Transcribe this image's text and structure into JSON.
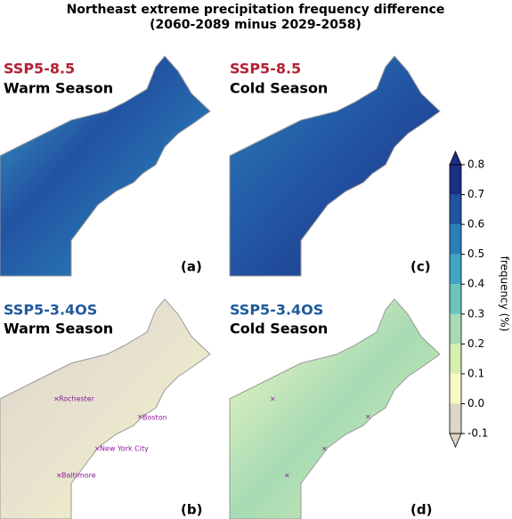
{
  "title": "Northeast extreme precipitation frequency difference",
  "subtitle": "(2060-2089 minus 2029-2058)",
  "panels": [
    {
      "scenario": "SSP5-8.5",
      "season": "Warm Season",
      "label": "(a)"
    },
    {
      "scenario": "SSP5-8.5",
      "season": "Cold Season",
      "label": "(c)"
    },
    {
      "scenario": "SSP5-3.4OS",
      "season": "Warm Season",
      "label": "(b)"
    },
    {
      "scenario": "SSP5-3.4OS",
      "season": "Cold Season",
      "label": "(d)"
    }
  ],
  "cities": [
    "Rochester",
    "Boston",
    "New York City",
    "Baltimore"
  ],
  "colorbar": {
    "label": "frequency (%)",
    "lim": [
      -0.1,
      0.8
    ],
    "ticks": [
      -0.1,
      {
        "value": 0,
        "label": "0.0"
      },
      0.1,
      0.2,
      0.3,
      0.4,
      0.5,
      0.6,
      0.7,
      0.8
    ],
    "colors": [
      "#ddd5c8",
      "#f6fac4",
      "#d9efb2",
      "#a7dbb4",
      "#6bc3bd",
      "#3ea4c6",
      "#2a7fb8",
      "#2253a2",
      "#1c2f82"
    ]
  }
}
